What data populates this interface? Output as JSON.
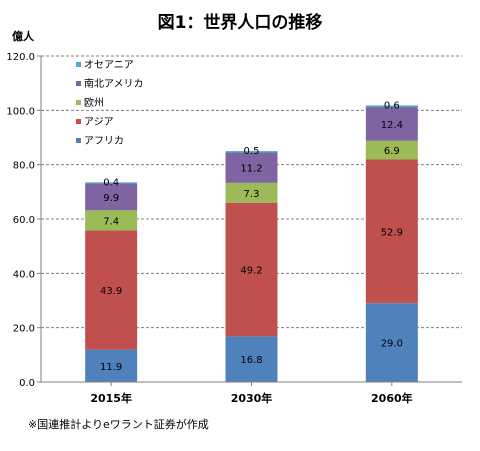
{
  "chart_data": {
    "type": "bar",
    "stacked": true,
    "title": "図1：世界人口の推移",
    "ylabel": "億人",
    "xlabel": "",
    "categories": [
      "2015年",
      "2030年",
      "2060年"
    ],
    "ylim": [
      0,
      120
    ],
    "yticks": [
      "0.0",
      "20.0",
      "40.0",
      "60.0",
      "80.0",
      "100.0",
      "120.0"
    ],
    "grid": true,
    "legend_position": "top-left",
    "series": [
      {
        "name": "アフリカ",
        "values": [
          11.9,
          16.8,
          29.0
        ],
        "labels": [
          "11.9",
          "16.8",
          "29.0"
        ],
        "color": "#4f81bd"
      },
      {
        "name": "アジア",
        "values": [
          43.9,
          49.2,
          52.9
        ],
        "labels": [
          "43.9",
          "49.2",
          "52.9"
        ],
        "color": "#c0504d"
      },
      {
        "name": "欧州",
        "values": [
          7.4,
          7.3,
          6.9
        ],
        "labels": [
          "7.4",
          "7.3",
          "6.9"
        ],
        "color": "#9bbb59"
      },
      {
        "name": "南北アメリカ",
        "values": [
          9.9,
          11.2,
          12.4
        ],
        "labels": [
          "9.9",
          "11.2",
          "12.4"
        ],
        "color": "#8064a2"
      },
      {
        "name": "オセアニア",
        "values": [
          0.4,
          0.5,
          0.6
        ],
        "labels": [
          "0.4",
          "0.5",
          "0.6"
        ],
        "color": "#4bacc6"
      }
    ]
  },
  "note": "※国連推計よりeワラント証券が作成"
}
